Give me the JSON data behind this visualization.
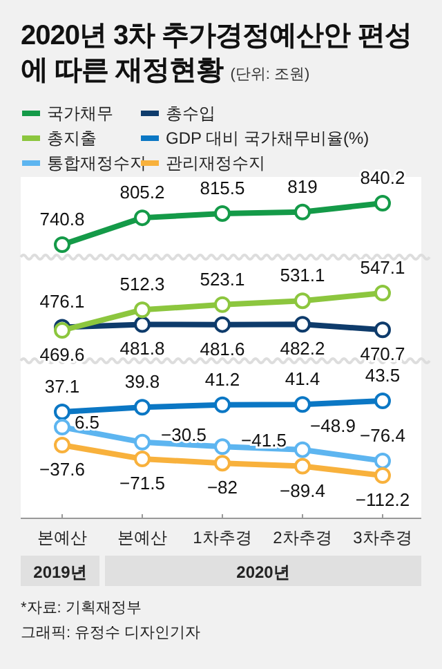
{
  "chart_data": [
    {
      "type": "line",
      "title": "2020년 3차 추가경정예산안 편성에 따른 재정현황",
      "subtitle": "(단위: 조원)",
      "categories": [
        null,
        null,
        null,
        null,
        null
      ],
      "series": [
        {
          "name": "국가채무",
          "color": "#149a48",
          "values": [
            740.8,
            805.2,
            815.5,
            819,
            840.2
          ]
        }
      ],
      "tick_labels": false,
      "data_labels": true,
      "marker": "circle",
      "line_style": "solid",
      "legend": "top"
    },
    {
      "type": "line",
      "categories": [
        null,
        null,
        null,
        null,
        null
      ],
      "series": [
        {
          "name": "총수입",
          "color": "#0e3b6b",
          "values": [
            476.1,
            481.8,
            481.6,
            482.2,
            470.7
          ]
        },
        {
          "name": "총지출",
          "color": "#8cc63e",
          "values": [
            469.6,
            512.3,
            523.1,
            531.1,
            547.1
          ]
        }
      ],
      "tick_labels": false,
      "data_labels": true,
      "marker": "circle",
      "line_style": "solid",
      "legend": "top"
    },
    {
      "type": "line",
      "categories": [
        null,
        null,
        null,
        null,
        null
      ],
      "series": [
        {
          "name": "GDP 대비 국가채무비율(%)",
          "color": "#0b77c4",
          "values": [
            37.1,
            39.8,
            41.2,
            41.4,
            43.5
          ]
        }
      ],
      "tick_labels": false,
      "data_labels": true,
      "marker": "circle",
      "line_style": "solid",
      "legend": "top"
    },
    {
      "type": "line",
      "categories": [
        "본예산",
        "본예산",
        "1차추경",
        "2차추경",
        "3차추경"
      ],
      "series": [
        {
          "name": "통합재정수지",
          "color": "#5db5f0",
          "values": [
            6.5,
            -30.5,
            -41.5,
            -48.9,
            -76.4
          ]
        },
        {
          "name": "관리재정수지",
          "color": "#f8b13c",
          "values": [
            -37.6,
            -71.5,
            -82,
            -89.4,
            -112.2
          ]
        }
      ],
      "tick_labels": "x",
      "data_labels": true,
      "marker": "circle",
      "line_style": "solid",
      "legend": "top",
      "annotations": [
        "2019년",
        "2020년",
        "*자료: 기획재정부",
        "그래픽: 유정수 디자인기자"
      ]
    }
  ]
}
